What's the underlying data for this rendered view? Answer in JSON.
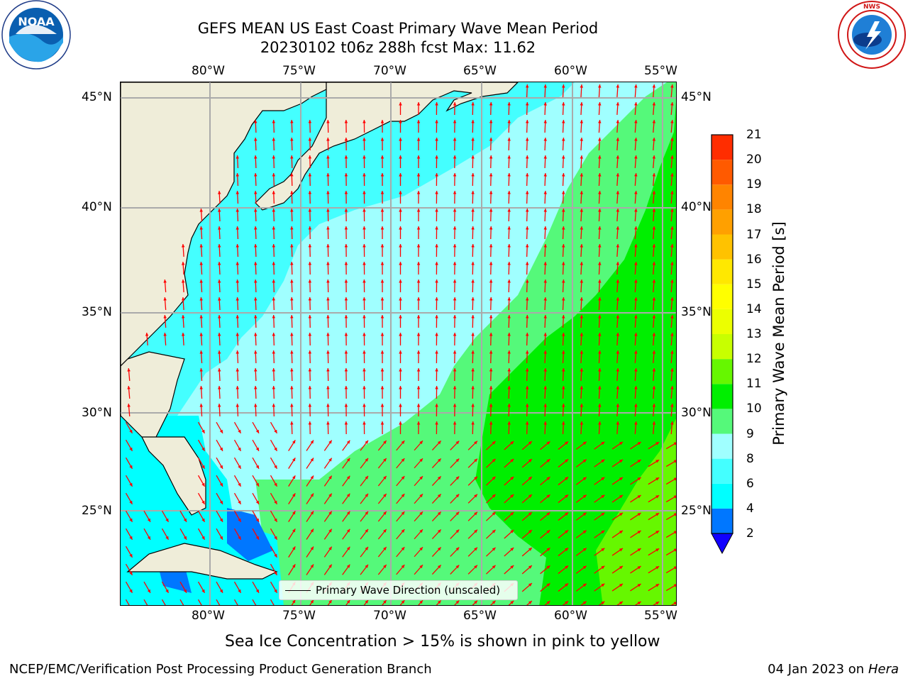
{
  "header": {
    "title_line1": "GEFS MEAN US East Coast Primary Wave Mean Period",
    "title_line2": "20230102 t06z 288h fcst   Max: 11.62"
  },
  "logos": {
    "left": {
      "text": "NOAA",
      "ring_text": "NATIONAL OCEANIC AND ATMOSPHERIC ADMINISTRATION · U.S. DEPARTMENT OF COMMERCE",
      "icon": "noaa-logo"
    },
    "right": {
      "ring_text": "NATIONAL WEATHER SERVICE",
      "icon": "nws-logo"
    }
  },
  "map": {
    "lon_labels": [
      "80°W",
      "75°W",
      "70°W",
      "65°W",
      "60°W",
      "55°W"
    ],
    "lat_labels": [
      "45°N",
      "40°N",
      "35°N",
      "30°N",
      "25°N"
    ],
    "lon_range": [
      -85,
      -54.3
    ],
    "lat_range": [
      20.5,
      46.0
    ],
    "gridlines": true,
    "land_color": "#efedd9",
    "arrow_color": "#ff0000",
    "legend_label": "Primary Wave Direction (unscaled)",
    "legend_placement": "lower-center"
  },
  "colorbar": {
    "title": "Primary Wave Mean Period [s]",
    "ticks": [
      "21",
      "20",
      "19",
      "18",
      "17",
      "16",
      "15",
      "14",
      "13",
      "12",
      "11",
      "10",
      "9",
      "8",
      "6",
      "4",
      "2"
    ],
    "levels": [
      2,
      4,
      6,
      8,
      9,
      10,
      11,
      12,
      13,
      14,
      15,
      16,
      17,
      18,
      19,
      20,
      21
    ],
    "colors": [
      "#0077ff",
      "#00ffff",
      "#44ffff",
      "#a0ffff",
      "#55f97a",
      "#00ef00",
      "#66f700",
      "#c8ff00",
      "#ecff00",
      "#ffff00",
      "#ffe800",
      "#ffc200",
      "#ffa000",
      "#ff8400",
      "#ff5a00",
      "#ff2d00"
    ],
    "extend_min_color": "#1100ff"
  },
  "footer": {
    "sea_ice_note": "Sea Ice Concentration > 15% is shown in pink to yellow",
    "credit_left": "NCEP/EMC/Verification Post Processing Product Generation Branch",
    "credit_date": "04 Jan 2023 on ",
    "credit_host": "Hera"
  }
}
